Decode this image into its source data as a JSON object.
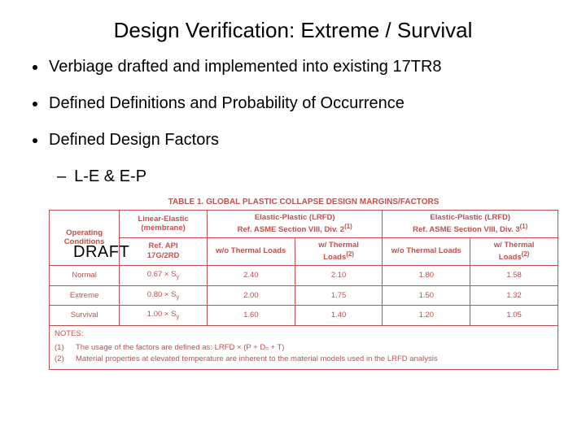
{
  "title": "Design Verification:  Extreme / Survival",
  "bullets": {
    "b1": "Verbiage drafted and implemented into existing 17TR8",
    "b2": "Defined Definitions and Probability of Occurrence",
    "b3": "Defined Design Factors",
    "b3a": "L-E & E-P"
  },
  "draft_label": "DRAFT",
  "table": {
    "title": "TABLE 1. GLOBAL PLASTIC COLLAPSE DESIGN MARGINS/FACTORS",
    "title_color": "#c0504d",
    "border_color": "#c0504d",
    "header": {
      "opcond": "Operating Conditions",
      "le_line1": "Linear-Elastic",
      "le_line2": "(membrane)",
      "ep2_line1": "Elastic-Plastic (LRFD)",
      "ep2_line2": "Ref. ASME Section VIII, Div. 2",
      "ep2_sup": "(1)",
      "ep3_line1": "Elastic-Plastic (LRFD)",
      "ep3_line2": "Ref. ASME Section VIII, Div. 3",
      "ep3_sup": "(1)",
      "le_sub1": "Ref. API",
      "le_sub2": "17G/2RD",
      "wo_thermal": "w/o Thermal Loads",
      "w_thermal_l1": "w/ Thermal",
      "w_thermal_l2": "Loads",
      "w_thermal_sup": "(2)"
    },
    "rows": [
      {
        "label": "Normal",
        "le": "0.67 × S",
        "le_sub": "y",
        "c1": "2.40",
        "c2": "2.10",
        "c3": "1.80",
        "c4": "1.58"
      },
      {
        "label": "Extreme",
        "le": "0.80 × S",
        "le_sub": "y",
        "c1": "2.00",
        "c2": "1.75",
        "c3": "1.50",
        "c4": "1.32"
      },
      {
        "label": "Survival",
        "le": "1.00 × S",
        "le_sub": "y",
        "c1": "1.60",
        "c2": "1.40",
        "c3": "1.20",
        "c4": "1.05"
      }
    ],
    "notes": {
      "heading": "NOTES:",
      "n1_idx": "(1)",
      "n1": "The usage of the factors are defined as: LRFD × (P + Dₒ + T)",
      "n2_idx": "(2)",
      "n2": "Material properties at elevated temperature are inherent to the material models used in the LRFD analysis"
    }
  }
}
